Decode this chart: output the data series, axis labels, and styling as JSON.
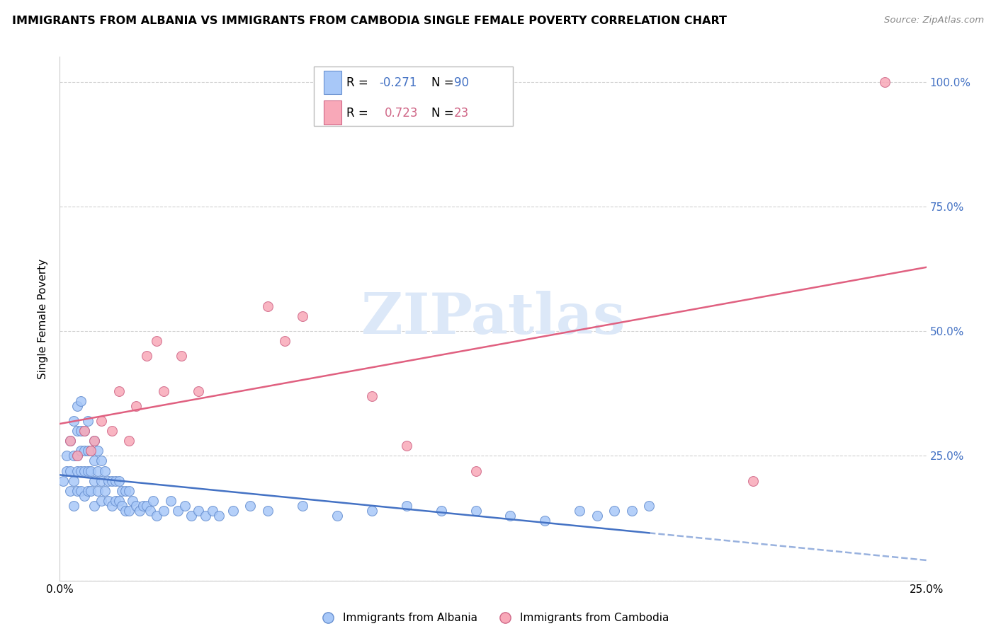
{
  "title": "IMMIGRANTS FROM ALBANIA VS IMMIGRANTS FROM CAMBODIA SINGLE FEMALE POVERTY CORRELATION CHART",
  "source": "Source: ZipAtlas.com",
  "ylabel": "Single Female Poverty",
  "albania_color": "#a8c8f8",
  "cambodia_color": "#f8a8b8",
  "albania_edge_color": "#6890d0",
  "cambodia_edge_color": "#d06888",
  "albania_line_color": "#4472c4",
  "cambodia_line_color": "#e06080",
  "albania_R": -0.271,
  "albania_N": 90,
  "cambodia_R": 0.723,
  "cambodia_N": 23,
  "watermark": "ZIPatlas",
  "watermark_color": "#dce8f8",
  "legend_blue_color": "#4472c4",
  "legend_pink_color": "#d06888",
  "albania_scatter_x": [
    0.001,
    0.002,
    0.002,
    0.003,
    0.003,
    0.003,
    0.004,
    0.004,
    0.004,
    0.004,
    0.005,
    0.005,
    0.005,
    0.005,
    0.005,
    0.006,
    0.006,
    0.006,
    0.006,
    0.006,
    0.007,
    0.007,
    0.007,
    0.007,
    0.008,
    0.008,
    0.008,
    0.008,
    0.009,
    0.009,
    0.009,
    0.01,
    0.01,
    0.01,
    0.01,
    0.011,
    0.011,
    0.011,
    0.012,
    0.012,
    0.012,
    0.013,
    0.013,
    0.014,
    0.014,
    0.015,
    0.015,
    0.016,
    0.016,
    0.017,
    0.017,
    0.018,
    0.018,
    0.019,
    0.019,
    0.02,
    0.02,
    0.021,
    0.022,
    0.023,
    0.024,
    0.025,
    0.026,
    0.027,
    0.028,
    0.03,
    0.032,
    0.034,
    0.036,
    0.038,
    0.04,
    0.042,
    0.044,
    0.046,
    0.05,
    0.055,
    0.06,
    0.07,
    0.08,
    0.09,
    0.1,
    0.11,
    0.12,
    0.13,
    0.14,
    0.15,
    0.155,
    0.16,
    0.165,
    0.17
  ],
  "albania_scatter_y": [
    0.2,
    0.22,
    0.25,
    0.18,
    0.22,
    0.28,
    0.15,
    0.2,
    0.25,
    0.32,
    0.18,
    0.22,
    0.25,
    0.3,
    0.35,
    0.18,
    0.22,
    0.26,
    0.3,
    0.36,
    0.17,
    0.22,
    0.26,
    0.3,
    0.18,
    0.22,
    0.26,
    0.32,
    0.18,
    0.22,
    0.26,
    0.15,
    0.2,
    0.24,
    0.28,
    0.18,
    0.22,
    0.26,
    0.16,
    0.2,
    0.24,
    0.18,
    0.22,
    0.16,
    0.2,
    0.15,
    0.2,
    0.16,
    0.2,
    0.16,
    0.2,
    0.15,
    0.18,
    0.14,
    0.18,
    0.14,
    0.18,
    0.16,
    0.15,
    0.14,
    0.15,
    0.15,
    0.14,
    0.16,
    0.13,
    0.14,
    0.16,
    0.14,
    0.15,
    0.13,
    0.14,
    0.13,
    0.14,
    0.13,
    0.14,
    0.15,
    0.14,
    0.15,
    0.13,
    0.14,
    0.15,
    0.14,
    0.14,
    0.13,
    0.12,
    0.14,
    0.13,
    0.14,
    0.14,
    0.15
  ],
  "cambodia_scatter_x": [
    0.003,
    0.005,
    0.007,
    0.009,
    0.01,
    0.012,
    0.015,
    0.017,
    0.02,
    0.022,
    0.025,
    0.028,
    0.03,
    0.035,
    0.04,
    0.06,
    0.065,
    0.07,
    0.09,
    0.1,
    0.12,
    0.2,
    0.238
  ],
  "cambodia_scatter_y": [
    0.28,
    0.25,
    0.3,
    0.26,
    0.28,
    0.32,
    0.3,
    0.38,
    0.28,
    0.35,
    0.45,
    0.48,
    0.38,
    0.45,
    0.38,
    0.55,
    0.48,
    0.53,
    0.37,
    0.27,
    0.22,
    0.2,
    1.0
  ],
  "xlim_min": 0.0,
  "xlim_max": 0.25,
  "ylim_min": 0.0,
  "ylim_max": 1.05
}
